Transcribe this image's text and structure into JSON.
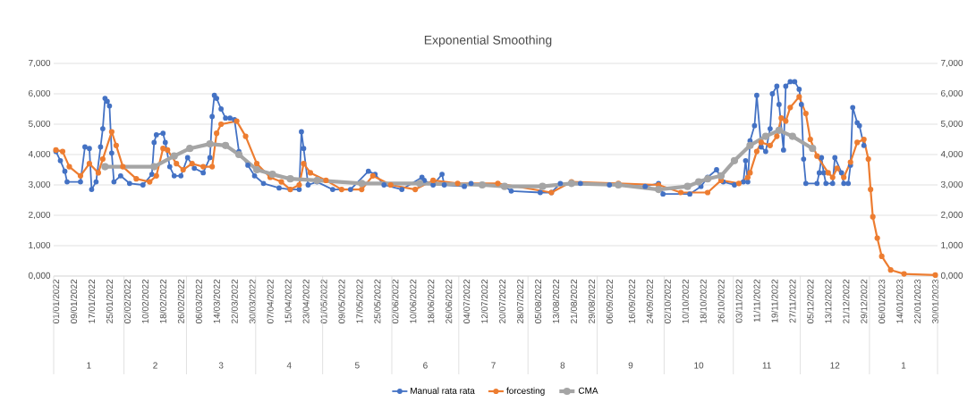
{
  "chart_data": {
    "type": "line",
    "title": "Exponential Smoothing",
    "xlim": [
      "2021-12-31",
      "2023-01-31"
    ],
    "xticks": [
      {
        "value": "2022-01-01",
        "label": "01/01/2022"
      },
      {
        "value": "2022-01-09",
        "label": "09/01/2022"
      },
      {
        "value": "2022-01-17",
        "label": "17/01/2022"
      },
      {
        "value": "2022-01-25",
        "label": "25/01/2022"
      },
      {
        "value": "2022-02-02",
        "label": "02/02/2022"
      },
      {
        "value": "2022-02-10",
        "label": "10/02/2022"
      },
      {
        "value": "2022-02-18",
        "label": "18/02/2022"
      },
      {
        "value": "2022-02-26",
        "label": "26/02/2022"
      },
      {
        "value": "2022-03-06",
        "label": "06/03/2022"
      },
      {
        "value": "2022-03-14",
        "label": "14/03/2022"
      },
      {
        "value": "2022-03-22",
        "label": "22/03/2022"
      },
      {
        "value": "2022-03-30",
        "label": "30/03/2022"
      },
      {
        "value": "2022-04-07",
        "label": "07/04/2022"
      },
      {
        "value": "2022-04-15",
        "label": "15/04/2022"
      },
      {
        "value": "2022-04-23",
        "label": "23/04/2022"
      },
      {
        "value": "2022-05-01",
        "label": "01/05/2022"
      },
      {
        "value": "2022-05-09",
        "label": "09/05/2022"
      },
      {
        "value": "2022-05-17",
        "label": "17/05/2022"
      },
      {
        "value": "2022-05-25",
        "label": "25/05/2022"
      },
      {
        "value": "2022-06-02",
        "label": "02/06/2022"
      },
      {
        "value": "2022-06-10",
        "label": "10/06/2022"
      },
      {
        "value": "2022-06-18",
        "label": "18/06/2022"
      },
      {
        "value": "2022-06-26",
        "label": "26/06/2022"
      },
      {
        "value": "2022-07-04",
        "label": "04/07/2022"
      },
      {
        "value": "2022-07-12",
        "label": "12/07/2022"
      },
      {
        "value": "2022-07-20",
        "label": "20/07/2022"
      },
      {
        "value": "2022-07-28",
        "label": "28/07/2022"
      },
      {
        "value": "2022-08-05",
        "label": "05/08/2022"
      },
      {
        "value": "2022-08-13",
        "label": "13/08/2022"
      },
      {
        "value": "2022-08-21",
        "label": "21/08/2022"
      },
      {
        "value": "2022-08-29",
        "label": "29/08/2022"
      },
      {
        "value": "2022-09-06",
        "label": "06/09/2022"
      },
      {
        "value": "2022-09-16",
        "label": "16/09/2022"
      },
      {
        "value": "2022-09-24",
        "label": "24/09/2022"
      },
      {
        "value": "2022-10-02",
        "label": "02/10/2022"
      },
      {
        "value": "2022-10-10",
        "label": "10/10/2022"
      },
      {
        "value": "2022-10-18",
        "label": "18/10/2022"
      },
      {
        "value": "2022-10-26",
        "label": "26/10/2022"
      },
      {
        "value": "2022-11-03",
        "label": "03/11/2022"
      },
      {
        "value": "2022-11-11",
        "label": "11/11/2022"
      },
      {
        "value": "2022-11-19",
        "label": "19/11/2022"
      },
      {
        "value": "2022-11-27",
        "label": "27/11/2022"
      },
      {
        "value": "2022-12-05",
        "label": "05/12/2022"
      },
      {
        "value": "2022-12-13",
        "label": "13/12/2022"
      },
      {
        "value": "2022-12-21",
        "label": "21/12/2022"
      },
      {
        "value": "2022-12-29",
        "label": "29/12/2022"
      },
      {
        "value": "2023-01-06",
        "label": "06/01/2023"
      },
      {
        "value": "2023-01-14",
        "label": "14/01/2023"
      },
      {
        "value": "2023-01-22",
        "label": "22/01/2023"
      },
      {
        "value": "2023-01-30",
        "label": "30/01/2023"
      }
    ],
    "ylim": [
      0,
      7
    ],
    "yticks": [
      {
        "value": 0,
        "label": "0,000"
      },
      {
        "value": 1,
        "label": "1,000"
      },
      {
        "value": 2,
        "label": "2,000"
      },
      {
        "value": 3,
        "label": "3,000"
      },
      {
        "value": 4,
        "label": "4,000"
      },
      {
        "value": 5,
        "label": "5,000"
      },
      {
        "value": 6,
        "label": "6,000"
      },
      {
        "value": 7,
        "label": "7,000"
      }
    ],
    "y2lim": [
      0,
      7
    ],
    "y2ticks": [
      {
        "value": 0,
        "label": "0,000"
      },
      {
        "value": 1,
        "label": "1,000"
      },
      {
        "value": 2,
        "label": "2,000"
      },
      {
        "value": 3,
        "label": "3,000"
      },
      {
        "value": 4,
        "label": "4,000"
      },
      {
        "value": 5,
        "label": "5,000"
      },
      {
        "value": 6,
        "label": "6,000"
      },
      {
        "value": 7,
        "label": "7,000"
      }
    ],
    "grid": "y",
    "legend": "bottom",
    "marker": "circle",
    "line_style": "solid",
    "annotations": [
      "1",
      "2",
      "3",
      "4",
      "5",
      "6",
      "7",
      "8",
      "9",
      "10",
      "11",
      "12",
      "1"
    ],
    "series": [
      {
        "name": "Manual rata rata",
        "color": "#4472c4",
        "x": [
          "2022-01-01",
          "2022-01-03",
          "2022-01-05",
          "2022-01-06",
          "2022-01-12",
          "2022-01-14",
          "2022-01-16",
          "2022-01-17",
          "2022-01-19",
          "2022-01-21",
          "2022-01-22",
          "2022-01-23",
          "2022-01-24",
          "2022-01-25",
          "2022-01-26",
          "2022-01-27",
          "2022-01-30",
          "2022-02-03",
          "2022-02-09",
          "2022-02-13",
          "2022-02-14",
          "2022-02-15",
          "2022-02-18",
          "2022-02-19",
          "2022-02-21",
          "2022-02-23",
          "2022-02-26",
          "2022-03-01",
          "2022-03-04",
          "2022-03-08",
          "2022-03-11",
          "2022-03-12",
          "2022-03-13",
          "2022-03-14",
          "2022-03-16",
          "2022-03-18",
          "2022-03-20",
          "2022-03-22",
          "2022-03-24",
          "2022-03-28",
          "2022-03-31",
          "2022-04-04",
          "2022-04-11",
          "2022-04-16",
          "2022-04-20",
          "2022-04-21",
          "2022-04-22",
          "2022-04-24",
          "2022-04-28",
          "2022-05-05",
          "2022-05-13",
          "2022-05-21",
          "2022-05-24",
          "2022-05-28",
          "2022-06-05",
          "2022-06-14",
          "2022-06-15",
          "2022-06-19",
          "2022-06-23",
          "2022-06-24",
          "2022-07-03",
          "2022-07-06",
          "2022-07-11",
          "2022-07-21",
          "2022-07-24",
          "2022-08-06",
          "2022-08-11",
          "2022-08-15",
          "2022-08-24",
          "2022-09-06",
          "2022-09-22",
          "2022-09-28",
          "2022-09-30",
          "2022-10-12",
          "2022-10-17",
          "2022-10-20",
          "2022-10-24",
          "2022-10-27",
          "2022-11-01",
          "2022-11-05",
          "2022-11-06",
          "2022-11-07",
          "2022-11-08",
          "2022-11-10",
          "2022-11-11",
          "2022-11-13",
          "2022-11-15",
          "2022-11-17",
          "2022-11-18",
          "2022-11-20",
          "2022-11-21",
          "2022-11-23",
          "2022-11-24",
          "2022-11-26",
          "2022-11-28",
          "2022-11-30",
          "2022-12-01",
          "2022-12-02",
          "2022-12-03",
          "2022-12-08",
          "2022-12-09",
          "2022-12-10",
          "2022-12-11",
          "2022-12-12",
          "2022-12-15",
          "2022-12-16",
          "2022-12-19",
          "2022-12-20",
          "2022-12-22",
          "2022-12-23",
          "2022-12-24",
          "2022-12-26",
          "2022-12-27",
          "2022-12-29"
        ],
        "values": [
          4.1,
          3.8,
          3.45,
          3.1,
          3.1,
          4.25,
          4.2,
          2.85,
          3.1,
          4.25,
          4.85,
          5.85,
          5.75,
          5.6,
          4.05,
          3.1,
          3.3,
          3.05,
          3.0,
          3.35,
          4.4,
          4.65,
          4.7,
          4.4,
          3.6,
          3.3,
          3.3,
          3.9,
          3.55,
          3.4,
          3.9,
          5.25,
          5.95,
          5.85,
          5.5,
          5.2,
          5.2,
          5.15,
          4.1,
          3.65,
          3.3,
          3.05,
          2.9,
          2.85,
          2.85,
          4.75,
          4.2,
          3.0,
          3.1,
          2.85,
          2.85,
          3.45,
          3.35,
          3.0,
          2.85,
          3.25,
          3.15,
          3.0,
          3.35,
          3.0,
          2.95,
          3.05,
          3.0,
          2.95,
          2.8,
          2.75,
          2.75,
          3.05,
          3.05,
          3.0,
          2.95,
          3.05,
          2.7,
          2.7,
          2.95,
          3.25,
          3.5,
          3.1,
          3.0,
          3.1,
          3.8,
          3.1,
          4.45,
          4.95,
          5.95,
          4.25,
          4.1,
          4.85,
          6.0,
          6.25,
          5.65,
          4.15,
          6.25,
          6.4,
          6.4,
          6.15,
          5.65,
          3.85,
          3.05,
          3.05,
          3.4,
          3.9,
          3.4,
          3.05,
          3.05,
          3.9,
          3.4,
          3.05,
          3.05,
          3.65,
          5.55,
          5.05,
          4.95,
          4.3
        ]
      },
      {
        "name": "forcesting",
        "color": "#ed7d31",
        "x": [
          "2022-01-01",
          "2022-01-04",
          "2022-01-07",
          "2022-01-12",
          "2022-01-16",
          "2022-01-20",
          "2022-01-22",
          "2022-01-26",
          "2022-01-28",
          "2022-01-31",
          "2022-02-06",
          "2022-02-12",
          "2022-02-15",
          "2022-02-18",
          "2022-02-20",
          "2022-02-24",
          "2022-02-27",
          "2022-03-03",
          "2022-03-08",
          "2022-03-12",
          "2022-03-14",
          "2022-03-16",
          "2022-03-23",
          "2022-03-27",
          "2022-04-01",
          "2022-04-07",
          "2022-04-12",
          "2022-04-16",
          "2022-04-20",
          "2022-04-22",
          "2022-04-25",
          "2022-05-02",
          "2022-05-09",
          "2022-05-18",
          "2022-05-23",
          "2022-05-31",
          "2022-06-11",
          "2022-06-19",
          "2022-06-30",
          "2022-07-18",
          "2022-08-11",
          "2022-08-20",
          "2022-09-10",
          "2022-09-28",
          "2022-10-08",
          "2022-10-20",
          "2022-10-26",
          "2022-11-03",
          "2022-11-07",
          "2022-11-08",
          "2022-11-11",
          "2022-11-13",
          "2022-11-17",
          "2022-11-20",
          "2022-11-22",
          "2022-11-24",
          "2022-11-26",
          "2022-11-30",
          "2022-12-03",
          "2022-12-05",
          "2022-12-08",
          "2022-12-13",
          "2022-12-15",
          "2022-12-17",
          "2022-12-20",
          "2022-12-23",
          "2022-12-26",
          "2022-12-29",
          "2022-12-31",
          "2023-01-01",
          "2023-01-02",
          "2023-01-04",
          "2023-01-06",
          "2023-01-10",
          "2023-01-16",
          "2023-01-30"
        ],
        "values": [
          4.15,
          4.1,
          3.6,
          3.3,
          3.7,
          3.4,
          3.85,
          4.75,
          4.3,
          3.6,
          3.2,
          3.1,
          3.3,
          4.2,
          4.15,
          3.7,
          3.5,
          3.7,
          3.6,
          3.6,
          4.7,
          5.0,
          5.1,
          4.6,
          3.7,
          3.25,
          3.1,
          2.85,
          3.0,
          3.7,
          3.4,
          3.15,
          2.85,
          2.85,
          3.3,
          3.0,
          2.85,
          3.15,
          3.05,
          3.05,
          2.75,
          3.1,
          3.05,
          3.0,
          2.75,
          2.75,
          3.15,
          3.05,
          3.25,
          3.4,
          4.1,
          4.4,
          4.3,
          4.6,
          5.2,
          5.1,
          5.55,
          5.9,
          5.35,
          4.5,
          3.95,
          3.4,
          3.25,
          3.55,
          3.25,
          3.75,
          4.4,
          4.5,
          3.85,
          2.85,
          1.95,
          1.25,
          0.65,
          0.2,
          0.07,
          0.03
        ]
      },
      {
        "name": "CMA",
        "color": "#a5a5a5",
        "x": [
          "2022-01-23",
          "2022-02-14",
          "2022-02-23",
          "2022-03-02",
          "2022-03-11",
          "2022-03-18",
          "2022-03-24",
          "2022-04-01",
          "2022-04-08",
          "2022-04-16",
          "2022-04-28",
          "2022-05-18",
          "2022-06-13",
          "2022-07-11",
          "2022-07-21",
          "2022-08-07",
          "2022-08-20",
          "2022-09-10",
          "2022-09-28",
          "2022-10-11",
          "2022-10-16",
          "2022-10-20",
          "2022-10-26",
          "2022-11-01",
          "2022-11-08",
          "2022-11-15",
          "2022-11-21",
          "2022-11-27",
          "2022-12-06"
        ],
        "values": [
          3.6,
          3.6,
          3.95,
          4.2,
          4.35,
          4.3,
          4.0,
          3.5,
          3.35,
          3.2,
          3.15,
          3.05,
          3.05,
          3.0,
          2.95,
          2.95,
          3.05,
          3.0,
          2.85,
          2.95,
          3.1,
          3.2,
          3.3,
          3.8,
          4.3,
          4.6,
          4.8,
          4.6,
          4.2
        ]
      }
    ]
  }
}
